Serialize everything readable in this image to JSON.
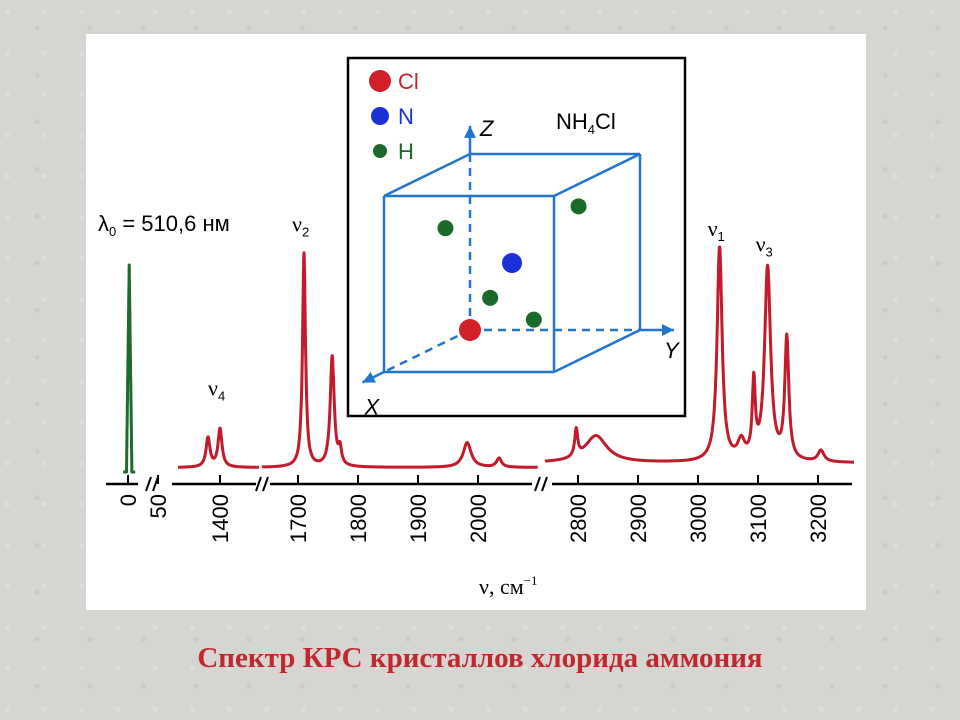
{
  "caption": "Спектр КРС кристаллов хлорида аммония",
  "chart_data": {
    "type": "line",
    "title": "",
    "xlabel": "ν, см",
    "xlabel_sup": "−1",
    "ylabel": "",
    "x_axis": {
      "segments": [
        {
          "from": 0,
          "to": 60,
          "ticks": [
            "0",
            "50"
          ]
        },
        {
          "from": 1330,
          "to": 1465,
          "ticks": [
            "1400"
          ]
        },
        {
          "from": 1640,
          "to": 2100,
          "ticks": [
            "1700",
            "1800",
            "1900",
            "2000"
          ]
        },
        {
          "from": 2745,
          "to": 3260,
          "ticks": [
            "2800",
            "2900",
            "3000",
            "3100",
            "3200"
          ]
        }
      ],
      "break_marks": 3
    },
    "laser_line": {
      "label_symbol": "λ",
      "label_sub": "0",
      "label_rest": " = 510,6 нм",
      "color": "#1f6b2c",
      "peak": {
        "x": 2,
        "y": 0.92,
        "width": 4.5
      },
      "x_range": [
        -8,
        12
      ]
    },
    "series": [
      {
        "color": "#c21b2b",
        "baseline": 0.02,
        "x_range": [
          1330,
          1465
        ],
        "peaks": [
          {
            "x": 1380,
            "h": 0.13,
            "w": 4
          },
          {
            "x": 1400,
            "h": 0.17,
            "w": 4
          }
        ]
      },
      {
        "color": "#c21b2b",
        "baseline": 0.02,
        "x_range": [
          1640,
          2100
        ],
        "peaks": [
          {
            "x": 1710,
            "h": 0.95,
            "w": 3
          },
          {
            "x": 1757,
            "h": 0.49,
            "w": 4
          },
          {
            "x": 1770,
            "h": 0.07,
            "w": 3
          },
          {
            "x": 1982,
            "h": 0.11,
            "w": 8
          },
          {
            "x": 2035,
            "h": 0.04,
            "w": 5
          }
        ]
      },
      {
        "color": "#c21b2b",
        "baseline": 0.04,
        "x_range": [
          2745,
          3260
        ],
        "peaks": [
          {
            "x": 2797,
            "h": 0.12,
            "w": 3
          },
          {
            "x": 2830,
            "h": 0.12,
            "w": 22
          },
          {
            "x": 3036,
            "h": 0.96,
            "w": 5
          },
          {
            "x": 3072,
            "h": 0.08,
            "w": 7
          },
          {
            "x": 3093,
            "h": 0.33,
            "w": 3
          },
          {
            "x": 3116,
            "h": 0.86,
            "w": 6
          },
          {
            "x": 3148,
            "h": 0.54,
            "w": 4
          },
          {
            "x": 3205,
            "h": 0.05,
            "w": 6
          }
        ]
      }
    ],
    "peak_labels": [
      {
        "symbol": "ν",
        "sub": "4",
        "x": 1400,
        "y": 0.34
      },
      {
        "symbol": "ν",
        "sub": "2",
        "x": 1710,
        "y": 1.07
      },
      {
        "symbol": "ν",
        "sub": "1",
        "x": 3036,
        "y": 1.05
      },
      {
        "symbol": "ν",
        "sub": "3",
        "x": 3116,
        "y": 0.98
      }
    ],
    "inset": {
      "title_main": "NH",
      "title_sub": "4",
      "title_end": "Cl",
      "legend": [
        {
          "label": "Cl",
          "color": "#d0202a"
        },
        {
          "label": "N",
          "color": "#1c30d8"
        },
        {
          "label": "H",
          "color": "#1c6a2a"
        }
      ],
      "axes": {
        "z": "Z",
        "y": "Y",
        "x": "X"
      },
      "cube_color": "#2176cc",
      "atoms": [
        {
          "type": "Cl",
          "u": 0,
          "v": 0,
          "w": 0
        },
        {
          "type": "N",
          "u": 0.5,
          "v": 0.5,
          "w": 0.5
        },
        {
          "type": "H",
          "u": 0.24,
          "v": 0.24,
          "w": 0.24
        },
        {
          "type": "H",
          "u": 0.76,
          "v": 0.76,
          "w": 0.24
        },
        {
          "type": "H",
          "u": 0.76,
          "v": 0.24,
          "w": 0.76
        },
        {
          "type": "H",
          "u": 0.24,
          "v": 0.76,
          "w": 0.76
        }
      ]
    }
  }
}
